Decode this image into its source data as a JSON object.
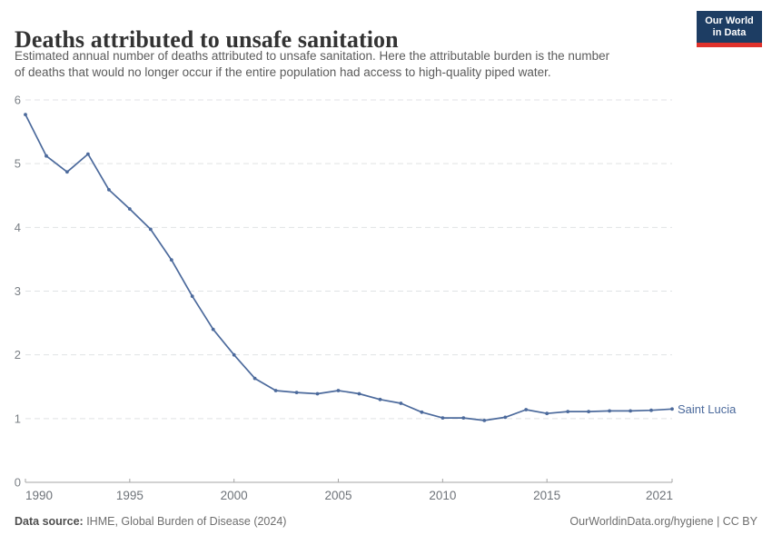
{
  "header": {
    "title": "Deaths attributed to unsafe sanitation",
    "subtitle_lines": [
      "Estimated annual number of deaths attributed to unsafe sanitation. Here the attributable burden is the number",
      "of deaths that would no longer occur if the entire population had access to high-quality piped water."
    ],
    "logo": {
      "line1": "Our World",
      "line2": "in Data"
    }
  },
  "chart_data": {
    "type": "line",
    "title": "Deaths attributed to unsafe sanitation",
    "xlabel": "",
    "ylabel": "",
    "xlim": [
      1990,
      2021
    ],
    "ylim": [
      0,
      6
    ],
    "xticks": [
      1990,
      1995,
      2000,
      2005,
      2010,
      2015,
      2021
    ],
    "yticks": [
      0,
      1,
      2,
      3,
      4,
      5,
      6
    ],
    "grid": "horizontal-dashed",
    "legend_position": "end-of-line-label",
    "x": [
      1990,
      1991,
      1992,
      1993,
      1994,
      1995,
      1996,
      1997,
      1998,
      1999,
      2000,
      2001,
      2002,
      2003,
      2004,
      2005,
      2006,
      2007,
      2008,
      2009,
      2010,
      2011,
      2012,
      2013,
      2014,
      2015,
      2016,
      2017,
      2018,
      2019,
      2020,
      2021
    ],
    "series": [
      {
        "name": "Saint Lucia",
        "color": "#4c6a9c",
        "values": [
          5.77,
          5.12,
          4.87,
          5.15,
          4.59,
          4.29,
          3.97,
          3.49,
          2.92,
          2.4,
          2.0,
          1.63,
          1.44,
          1.41,
          1.39,
          1.44,
          1.39,
          1.3,
          1.24,
          1.1,
          1.01,
          1.01,
          0.97,
          1.02,
          1.14,
          1.08,
          1.11,
          1.11,
          1.12,
          1.12,
          1.13,
          1.15
        ]
      }
    ],
    "entity_label": "Saint Lucia"
  },
  "footer": {
    "source_label": "Data source:",
    "source_value": " IHME, Global Burden of Disease (2024)",
    "link": "OurWorldinData.org/hygiene | CC BY"
  },
  "colors": {
    "line": "#4c6a9c",
    "entity_label": "#4c6a9c",
    "grid": "#e0e2e4",
    "axis": "#a5a5a5",
    "ytick_label": "#7b8086",
    "xtick_label": "#6e7379",
    "logo_bg": "#1d3d63",
    "logo_bar": "#e0312b",
    "title_text": "#333333",
    "subtitle_text": "#5b5b5b"
  }
}
